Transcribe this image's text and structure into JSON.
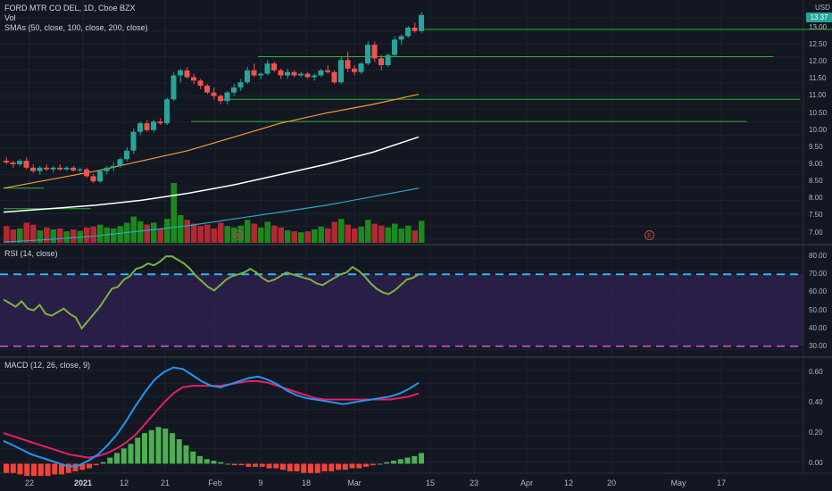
{
  "header": {
    "title": "FORD MTR CO DEL, 1D, Cboe BZX",
    "vol_label": "Vol",
    "sma_label": "SMAs (50, close, 100, close, 200, close)"
  },
  "rsi_label": "RSI (14, close)",
  "macd_label": "MACD (12, 26, close, 9)",
  "currency": "USD",
  "last_price": "13.37",
  "earnings_marker": "E",
  "x_ticks": [
    {
      "label": "22",
      "bold": false
    },
    {
      "label": "2021",
      "bold": true
    },
    {
      "label": "12",
      "bold": false
    },
    {
      "label": "21",
      "bold": false
    },
    {
      "label": "Feb",
      "bold": false
    },
    {
      "label": "9",
      "bold": false
    },
    {
      "label": "18",
      "bold": false
    },
    {
      "label": "Mar",
      "bold": false
    },
    {
      "label": "15",
      "bold": false
    },
    {
      "label": "23",
      "bold": false
    },
    {
      "label": "Apr",
      "bold": false
    },
    {
      "label": "12",
      "bold": false
    },
    {
      "label": "20",
      "bold": false
    },
    {
      "label": "May",
      "bold": false
    },
    {
      "label": "17",
      "bold": false
    }
  ],
  "colors": {
    "up": "#26a69a",
    "down": "#ef5350",
    "vol_up": "#1b8a1b",
    "vol_down": "#b22833",
    "sma50": "#f39c35",
    "sma100": "#ffffff",
    "sma200": "#2ba7c4",
    "levels": "#2bb52b",
    "rsi": "#7cb342",
    "rsi_band": "#3d2563",
    "rsi_upper": "#29b6f6",
    "rsi_lower": "#ab47bc",
    "macd": "#2196f3",
    "signal": "#e91e63",
    "hist_up": "#4caf50",
    "hist_down": "#f44336"
  },
  "chart_data": [
    {
      "type": "candlestick",
      "title": "FORD MTR CO DEL, 1D, Cboe BZX",
      "ylabel": "USD",
      "ylim": [
        6.7,
        13.6
      ],
      "y_ticks": [
        "13.00",
        "12.50",
        "12.00",
        "11.50",
        "11.00",
        "10.50",
        "10.00",
        "9.50",
        "9.00",
        "8.50",
        "8.00",
        "7.50",
        "7.00"
      ],
      "candles": [
        {
          "o": 9.1,
          "h": 9.2,
          "l": 9.0,
          "c": 9.05
        },
        {
          "o": 9.05,
          "h": 9.1,
          "l": 8.9,
          "c": 9.0
        },
        {
          "o": 9.0,
          "h": 9.15,
          "l": 8.95,
          "c": 9.1
        },
        {
          "o": 9.1,
          "h": 9.2,
          "l": 8.85,
          "c": 8.9
        },
        {
          "o": 8.9,
          "h": 9.0,
          "l": 8.75,
          "c": 8.8
        },
        {
          "o": 8.8,
          "h": 8.95,
          "l": 8.7,
          "c": 8.9
        },
        {
          "o": 8.9,
          "h": 9.0,
          "l": 8.8,
          "c": 8.85
        },
        {
          "o": 8.85,
          "h": 8.95,
          "l": 8.75,
          "c": 8.9
        },
        {
          "o": 8.9,
          "h": 9.0,
          "l": 8.8,
          "c": 8.85
        },
        {
          "o": 8.85,
          "h": 8.95,
          "l": 8.8,
          "c": 8.9
        },
        {
          "o": 8.9,
          "h": 8.95,
          "l": 8.78,
          "c": 8.82
        },
        {
          "o": 8.82,
          "h": 8.9,
          "l": 8.75,
          "c": 8.85
        },
        {
          "o": 8.85,
          "h": 8.9,
          "l": 8.6,
          "c": 8.65
        },
        {
          "o": 8.65,
          "h": 8.72,
          "l": 8.45,
          "c": 8.5
        },
        {
          "o": 8.5,
          "h": 8.85,
          "l": 8.45,
          "c": 8.8
        },
        {
          "o": 8.8,
          "h": 8.95,
          "l": 8.7,
          "c": 8.9
        },
        {
          "o": 8.9,
          "h": 9.05,
          "l": 8.8,
          "c": 8.95
        },
        {
          "o": 8.95,
          "h": 9.2,
          "l": 8.9,
          "c": 9.15
        },
        {
          "o": 9.15,
          "h": 9.5,
          "l": 9.1,
          "c": 9.4
        },
        {
          "o": 9.4,
          "h": 10.05,
          "l": 9.3,
          "c": 9.95
        },
        {
          "o": 9.95,
          "h": 10.25,
          "l": 9.85,
          "c": 10.2
        },
        {
          "o": 10.2,
          "h": 10.3,
          "l": 9.95,
          "c": 10.0
        },
        {
          "o": 10.0,
          "h": 10.3,
          "l": 9.95,
          "c": 10.25
        },
        {
          "o": 10.25,
          "h": 10.35,
          "l": 10.15,
          "c": 10.2
        },
        {
          "o": 10.2,
          "h": 10.95,
          "l": 10.15,
          "c": 10.9
        },
        {
          "o": 10.9,
          "h": 11.7,
          "l": 10.85,
          "c": 11.6
        },
        {
          "o": 11.6,
          "h": 11.8,
          "l": 11.4,
          "c": 11.75
        },
        {
          "o": 11.75,
          "h": 11.85,
          "l": 11.5,
          "c": 11.55
        },
        {
          "o": 11.55,
          "h": 11.65,
          "l": 11.35,
          "c": 11.45
        },
        {
          "o": 11.45,
          "h": 11.5,
          "l": 11.2,
          "c": 11.3
        },
        {
          "o": 11.3,
          "h": 11.35,
          "l": 11.05,
          "c": 11.1
        },
        {
          "o": 11.1,
          "h": 11.25,
          "l": 10.9,
          "c": 11.0
        },
        {
          "o": 11.0,
          "h": 11.05,
          "l": 10.75,
          "c": 10.85
        },
        {
          "o": 10.85,
          "h": 11.15,
          "l": 10.75,
          "c": 11.1
        },
        {
          "o": 11.1,
          "h": 11.35,
          "l": 11.0,
          "c": 11.25
        },
        {
          "o": 11.25,
          "h": 11.5,
          "l": 11.15,
          "c": 11.4
        },
        {
          "o": 11.4,
          "h": 11.85,
          "l": 11.35,
          "c": 11.75
        },
        {
          "o": 11.75,
          "h": 11.95,
          "l": 11.55,
          "c": 11.6
        },
        {
          "o": 11.6,
          "h": 11.7,
          "l": 11.5,
          "c": 11.65
        },
        {
          "o": 11.65,
          "h": 12.05,
          "l": 11.6,
          "c": 11.95
        },
        {
          "o": 11.95,
          "h": 12.0,
          "l": 11.7,
          "c": 11.75
        },
        {
          "o": 11.75,
          "h": 11.8,
          "l": 11.5,
          "c": 11.6
        },
        {
          "o": 11.6,
          "h": 11.8,
          "l": 11.5,
          "c": 11.7
        },
        {
          "o": 11.7,
          "h": 11.75,
          "l": 11.55,
          "c": 11.6
        },
        {
          "o": 11.6,
          "h": 11.7,
          "l": 11.55,
          "c": 11.65
        },
        {
          "o": 11.65,
          "h": 11.7,
          "l": 11.5,
          "c": 11.55
        },
        {
          "o": 11.55,
          "h": 11.65,
          "l": 11.45,
          "c": 11.6
        },
        {
          "o": 11.6,
          "h": 11.8,
          "l": 11.55,
          "c": 11.75
        },
        {
          "o": 11.75,
          "h": 11.9,
          "l": 11.65,
          "c": 11.7
        },
        {
          "o": 11.7,
          "h": 11.75,
          "l": 11.35,
          "c": 11.4
        },
        {
          "o": 11.4,
          "h": 12.15,
          "l": 11.35,
          "c": 12.05
        },
        {
          "o": 12.05,
          "h": 12.3,
          "l": 11.7,
          "c": 11.8
        },
        {
          "o": 11.8,
          "h": 11.9,
          "l": 11.6,
          "c": 11.7
        },
        {
          "o": 11.7,
          "h": 12.0,
          "l": 11.65,
          "c": 11.95
        },
        {
          "o": 11.95,
          "h": 12.6,
          "l": 11.9,
          "c": 12.5
        },
        {
          "o": 12.5,
          "h": 12.6,
          "l": 12.0,
          "c": 12.1
        },
        {
          "o": 12.1,
          "h": 12.2,
          "l": 11.75,
          "c": 11.9
        },
        {
          "o": 11.9,
          "h": 12.25,
          "l": 11.85,
          "c": 12.2
        },
        {
          "o": 12.2,
          "h": 12.75,
          "l": 12.15,
          "c": 12.65
        },
        {
          "o": 12.65,
          "h": 12.8,
          "l": 12.5,
          "c": 12.75
        },
        {
          "o": 12.75,
          "h": 13.05,
          "l": 12.7,
          "c": 13.0
        },
        {
          "o": 13.0,
          "h": 13.15,
          "l": 12.85,
          "c": 12.9
        },
        {
          "o": 12.9,
          "h": 13.45,
          "l": 12.85,
          "c": 13.37
        }
      ],
      "volume": [
        {
          "v": 35,
          "up": false
        },
        {
          "v": 28,
          "up": false
        },
        {
          "v": 30,
          "up": true
        },
        {
          "v": 42,
          "up": false
        },
        {
          "v": 38,
          "up": false
        },
        {
          "v": 26,
          "up": true
        },
        {
          "v": 32,
          "up": false
        },
        {
          "v": 28,
          "up": true
        },
        {
          "v": 30,
          "up": false
        },
        {
          "v": 24,
          "up": true
        },
        {
          "v": 28,
          "up": false
        },
        {
          "v": 25,
          "up": true
        },
        {
          "v": 32,
          "up": false
        },
        {
          "v": 34,
          "up": false
        },
        {
          "v": 38,
          "up": true
        },
        {
          "v": 32,
          "up": true
        },
        {
          "v": 30,
          "up": true
        },
        {
          "v": 35,
          "up": true
        },
        {
          "v": 42,
          "up": true
        },
        {
          "v": 55,
          "up": true
        },
        {
          "v": 45,
          "up": true
        },
        {
          "v": 38,
          "up": false
        },
        {
          "v": 42,
          "up": true
        },
        {
          "v": 30,
          "up": false
        },
        {
          "v": 50,
          "up": true
        },
        {
          "v": 125,
          "up": true
        },
        {
          "v": 58,
          "up": true
        },
        {
          "v": 48,
          "up": false
        },
        {
          "v": 40,
          "up": false
        },
        {
          "v": 35,
          "up": false
        },
        {
          "v": 38,
          "up": false
        },
        {
          "v": 30,
          "up": false
        },
        {
          "v": 42,
          "up": false
        },
        {
          "v": 35,
          "up": true
        },
        {
          "v": 32,
          "up": true
        },
        {
          "v": 36,
          "up": true
        },
        {
          "v": 48,
          "up": true
        },
        {
          "v": 40,
          "up": false
        },
        {
          "v": 32,
          "up": true
        },
        {
          "v": 44,
          "up": true
        },
        {
          "v": 36,
          "up": false
        },
        {
          "v": 32,
          "up": false
        },
        {
          "v": 26,
          "up": true
        },
        {
          "v": 24,
          "up": false
        },
        {
          "v": 22,
          "up": true
        },
        {
          "v": 24,
          "up": false
        },
        {
          "v": 28,
          "up": true
        },
        {
          "v": 34,
          "up": true
        },
        {
          "v": 30,
          "up": false
        },
        {
          "v": 44,
          "up": false
        },
        {
          "v": 50,
          "up": true
        },
        {
          "v": 38,
          "up": false
        },
        {
          "v": 30,
          "up": false
        },
        {
          "v": 34,
          "up": true
        },
        {
          "v": 48,
          "up": true
        },
        {
          "v": 40,
          "up": false
        },
        {
          "v": 36,
          "up": false
        },
        {
          "v": 32,
          "up": true
        },
        {
          "v": 40,
          "up": true
        },
        {
          "v": 30,
          "up": true
        },
        {
          "v": 36,
          "up": true
        },
        {
          "v": 26,
          "up": false
        },
        {
          "v": 46,
          "up": true
        }
      ],
      "sma_series": [
        {
          "name": "SMA 50",
          "points": [
            8.3,
            8.55,
            8.8,
            9.1,
            9.4,
            9.8,
            10.2,
            10.5,
            10.75,
            11.05
          ]
        },
        {
          "name": "SMA 100",
          "points": [
            7.6,
            7.7,
            7.8,
            7.95,
            8.15,
            8.4,
            8.7,
            9.0,
            9.35,
            9.8
          ]
        },
        {
          "name": "SMA 200",
          "points": [
            6.72,
            6.8,
            6.9,
            7.05,
            7.2,
            7.4,
            7.6,
            7.8,
            8.05,
            8.3
          ]
        }
      ],
      "levels": [
        {
          "price": 12.95,
          "from": 62,
          "to": 130
        },
        {
          "price": 12.15,
          "from": 38,
          "to": 115
        },
        {
          "price": 10.9,
          "from": 32,
          "to": 119
        },
        {
          "price": 10.25,
          "from": 28,
          "to": 111
        },
        {
          "price": 8.3,
          "from": 0,
          "to": 6
        },
        {
          "price": 7.7,
          "from": 0,
          "to": 13
        }
      ]
    },
    {
      "type": "line",
      "title": "RSI (14, close)",
      "ylim": [
        25,
        85
      ],
      "y_ticks": [
        "80.00",
        "70.00",
        "60.00",
        "50.00",
        "40.00",
        "30.00"
      ],
      "bands": {
        "upper": 70,
        "lower": 30
      },
      "values": [
        56,
        54,
        52,
        55,
        51,
        50,
        53,
        48,
        47,
        49,
        51,
        48,
        46,
        40,
        44,
        48,
        52,
        57,
        62,
        63,
        67,
        69,
        73,
        74,
        76,
        75,
        77,
        80,
        80,
        78,
        76,
        73,
        69,
        66,
        63,
        61,
        64,
        67,
        69,
        70,
        71,
        73,
        71,
        68,
        66,
        67,
        69,
        71,
        70,
        69,
        68,
        67,
        65,
        64,
        66,
        68,
        70,
        71,
        74,
        72,
        69,
        65,
        62,
        60,
        59,
        61,
        64,
        67,
        68,
        70
      ]
    },
    {
      "type": "line",
      "title": "MACD (12, 26, close, 9)",
      "ylim": [
        -0.05,
        0.68
      ],
      "y_ticks": [
        "0.60",
        "0.40",
        "0.20",
        "0.00"
      ],
      "macd": [
        0.15,
        0.12,
        0.09,
        0.06,
        0.04,
        0.02,
        0.0,
        -0.02,
        -0.01,
        0.02,
        0.06,
        0.12,
        0.19,
        0.28,
        0.38,
        0.47,
        0.55,
        0.6,
        0.63,
        0.62,
        0.58,
        0.54,
        0.51,
        0.5,
        0.52,
        0.54,
        0.56,
        0.57,
        0.55,
        0.52,
        0.48,
        0.45,
        0.43,
        0.42,
        0.41,
        0.4,
        0.39,
        0.4,
        0.41,
        0.42,
        0.43,
        0.44,
        0.46,
        0.49,
        0.53
      ],
      "signal": [
        0.2,
        0.18,
        0.16,
        0.14,
        0.12,
        0.1,
        0.08,
        0.06,
        0.05,
        0.04,
        0.05,
        0.07,
        0.1,
        0.14,
        0.19,
        0.26,
        0.33,
        0.4,
        0.46,
        0.5,
        0.51,
        0.51,
        0.51,
        0.51,
        0.52,
        0.53,
        0.54,
        0.54,
        0.53,
        0.51,
        0.49,
        0.47,
        0.45,
        0.43,
        0.42,
        0.42,
        0.42,
        0.42,
        0.42,
        0.42,
        0.42,
        0.42,
        0.43,
        0.44,
        0.46
      ],
      "histogram": [
        -0.06,
        -0.06,
        -0.07,
        -0.08,
        -0.08,
        -0.08,
        -0.08,
        -0.07,
        -0.07,
        -0.06,
        -0.05,
        -0.04,
        -0.03,
        -0.01,
        0.01,
        0.04,
        0.07,
        0.1,
        0.13,
        0.17,
        0.2,
        0.22,
        0.24,
        0.23,
        0.2,
        0.16,
        0.12,
        0.08,
        0.05,
        0.03,
        0.02,
        0.01,
        0.0,
        -0.01,
        -0.01,
        -0.02,
        -0.02,
        -0.02,
        -0.03,
        -0.03,
        -0.04,
        -0.05,
        -0.05,
        -0.06,
        -0.06,
        -0.06,
        -0.05,
        -0.05,
        -0.04,
        -0.04,
        -0.03,
        -0.03,
        -0.02,
        -0.01,
        0.0,
        0.01,
        0.02,
        0.03,
        0.04,
        0.05,
        0.07
      ]
    }
  ]
}
